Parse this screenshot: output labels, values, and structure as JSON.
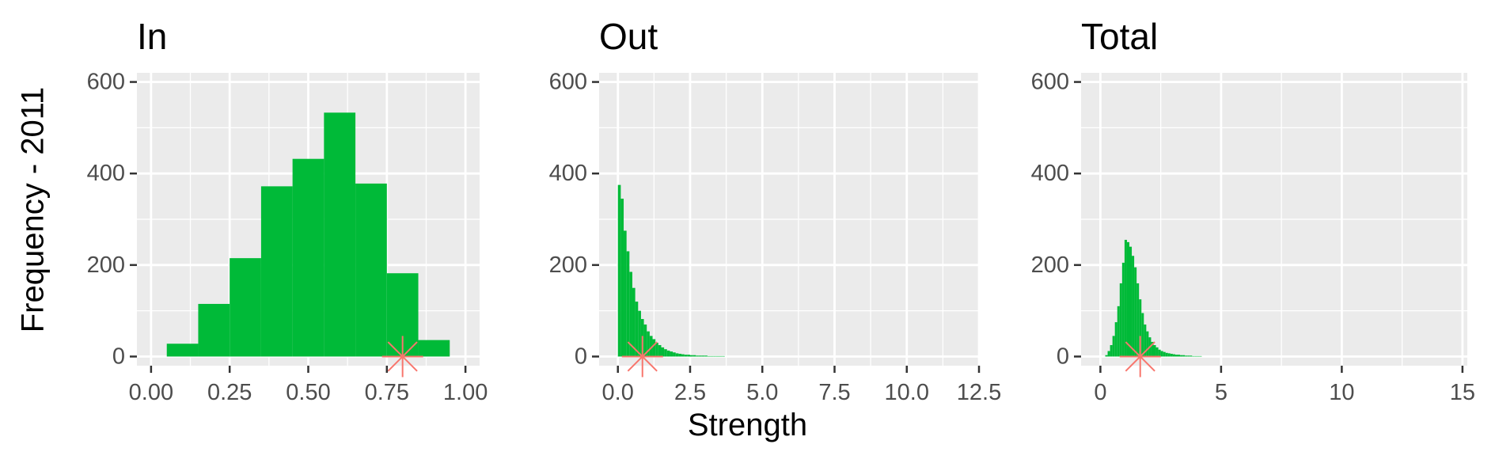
{
  "figure": {
    "ylabel": "Frequency - 2011",
    "xlabel": "Strength"
  },
  "colors": {
    "panel_bg": "#EBEBEB",
    "grid_major": "#FFFFFF",
    "bars": "#00BA38",
    "marker": "#F8766D",
    "tick_text": "#4D4D4D",
    "tick_mark": "#333333"
  },
  "chart_data": [
    {
      "type": "histogram",
      "title": "In",
      "xlim": [
        -0.045,
        1.045
      ],
      "ylim": [
        -20,
        620
      ],
      "x_ticks": [
        0,
        0.25,
        0.5,
        0.75,
        1
      ],
      "x_tick_labels": [
        "0.00",
        "0.25",
        "0.50",
        "0.75",
        "1.00"
      ],
      "y_ticks": [
        0,
        200,
        400,
        600
      ],
      "y_tick_labels": [
        "0",
        "200",
        "400",
        "600"
      ],
      "bins": [
        {
          "x0": 0.05,
          "x1": 0.15,
          "count": 28
        },
        {
          "x0": 0.15,
          "x1": 0.25,
          "count": 115
        },
        {
          "x0": 0.25,
          "x1": 0.35,
          "count": 215
        },
        {
          "x0": 0.35,
          "x1": 0.45,
          "count": 372
        },
        {
          "x0": 0.45,
          "x1": 0.55,
          "count": 432
        },
        {
          "x0": 0.55,
          "x1": 0.65,
          "count": 533
        },
        {
          "x0": 0.65,
          "x1": 0.75,
          "count": 378
        },
        {
          "x0": 0.75,
          "x1": 0.85,
          "count": 182
        },
        {
          "x0": 0.85,
          "x1": 0.95,
          "count": 36
        }
      ],
      "marker": {
        "x": 0.8,
        "y": 0,
        "shape": "asterisk"
      }
    },
    {
      "type": "histogram",
      "title": "Out",
      "xlim": [
        -0.65,
        12.5
      ],
      "ylim": [
        -20,
        620
      ],
      "x_ticks": [
        0,
        2.5,
        5,
        7.5,
        10,
        12.5
      ],
      "x_tick_labels": [
        "0.0",
        "2.5",
        "5.0",
        "7.5",
        "10.0",
        "12.5"
      ],
      "y_ticks": [
        0,
        200,
        400,
        600
      ],
      "y_tick_labels": [
        "0",
        "200",
        "400",
        "600"
      ],
      "bin_width": 0.1,
      "bins_start": 0,
      "counts": [
        375,
        345,
        275,
        230,
        185,
        150,
        120,
        100,
        82,
        70,
        55,
        45,
        38,
        30,
        25,
        20,
        16,
        13,
        11,
        9,
        7,
        6,
        5,
        4,
        4,
        3,
        3,
        2,
        2,
        2,
        2,
        1,
        1,
        1,
        1,
        1,
        1
      ],
      "marker": {
        "x": 0.85,
        "y": 0,
        "shape": "asterisk"
      }
    },
    {
      "type": "histogram",
      "title": "Total",
      "xlim": [
        -0.8,
        15.2
      ],
      "ylim": [
        -20,
        620
      ],
      "x_ticks": [
        0,
        5,
        10,
        15
      ],
      "x_tick_labels": [
        "0",
        "5",
        "10",
        "15"
      ],
      "y_ticks": [
        0,
        200,
        400,
        600
      ],
      "y_tick_labels": [
        "0",
        "200",
        "400",
        "600"
      ],
      "bin_width": 0.1,
      "bins_start": 0.2,
      "counts": [
        3,
        12,
        25,
        45,
        75,
        110,
        160,
        205,
        255,
        250,
        240,
        220,
        195,
        160,
        125,
        95,
        70,
        55,
        42,
        32,
        25,
        20,
        15,
        12,
        10,
        8,
        7,
        6,
        5,
        4,
        4,
        3,
        3,
        2,
        2,
        2,
        1,
        1,
        1,
        1
      ],
      "marker": {
        "x": 1.65,
        "y": 0,
        "shape": "asterisk"
      }
    }
  ]
}
